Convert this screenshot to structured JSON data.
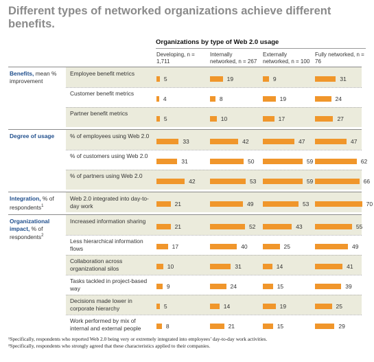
{
  "title": "Different types of networked organizations achieve different benefits.",
  "super_header": "Organizations by type of Web 2.0 usage",
  "footnotes": [
    "¹Specifically, respondents who reported Web 2.0 being very or extremely integrated into employees’ day-to-day work activities.",
    "²Specifically, respondents who strongly agreed that these characteristics applied to their companies."
  ],
  "accent_color": "#f0962b",
  "category_color": "#1f4e8c",
  "band_color": "#ebebdc",
  "chart_data": {
    "type": "bar",
    "orientation": "horizontal",
    "title": "Different types of networked organizations achieve different benefits.",
    "series_group_label": "Organizations by type of Web 2.0 usage",
    "series": [
      {
        "name": "Developing, n = 1,711"
      },
      {
        "name": "Internally networked, n = 267"
      },
      {
        "name": "Externally networked, n = 100"
      },
      {
        "name": "Fully networked, n = 76"
      }
    ],
    "groups": [
      {
        "label_bold": "Benefits,",
        "label_rest": " mean % improvement",
        "sup": "",
        "rows": [
          {
            "label": "Employee benefit metrics",
            "values": [
              5,
              19,
              9,
              31
            ]
          },
          {
            "label": "Customer benefit metrics",
            "values": [
              4,
              8,
              19,
              24
            ]
          },
          {
            "label": "Partner benefit metrics",
            "values": [
              5,
              10,
              17,
              27
            ]
          }
        ]
      },
      {
        "label_bold": "Degree of usage",
        "label_rest": "",
        "sup": "",
        "rows": [
          {
            "label": "% of employees using Web 2.0",
            "values": [
              33,
              42,
              47,
              47
            ]
          },
          {
            "label": "% of customers using Web 2.0",
            "values": [
              31,
              50,
              59,
              62
            ]
          },
          {
            "label": "% of partners using Web 2.0",
            "values": [
              42,
              53,
              59,
              66
            ]
          }
        ]
      },
      {
        "label_bold": "Integration,",
        "label_rest": " % of respondents",
        "sup": "1",
        "rows": [
          {
            "label": "Web 2.0 integrated into day-to-day work",
            "values": [
              21,
              49,
              53,
              70
            ]
          }
        ]
      },
      {
        "label_bold": "Organizational impact,",
        "label_rest": " % of respondents",
        "sup": "2",
        "rows": [
          {
            "label": "Increased information sharing",
            "values": [
              21,
              52,
              43,
              55
            ]
          },
          {
            "label": "Less hierarchical information flows",
            "values": [
              17,
              40,
              25,
              49
            ]
          },
          {
            "label": "Collaboration across organizational silos",
            "values": [
              10,
              31,
              14,
              41
            ]
          },
          {
            "label": "Tasks tackled in project-based way",
            "values": [
              9,
              24,
              15,
              39
            ]
          },
          {
            "label": "Decisions made lower in corporate hierarchy",
            "values": [
              5,
              14,
              19,
              25
            ]
          },
          {
            "label": "Work performed by mix of internal and external people",
            "values": [
              8,
              21,
              15,
              29
            ]
          }
        ]
      }
    ]
  }
}
